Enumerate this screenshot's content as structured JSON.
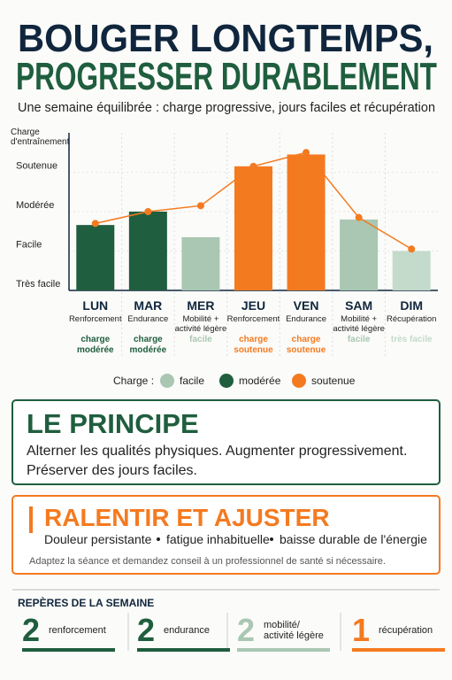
{
  "header": {
    "title_line1": "BOUGER LONGTEMPS,",
    "title_line2": "PROGRESSER DURABLEMENT",
    "subtitle": "Une semaine équilibrée : charge progressive, jours faciles et récupération"
  },
  "chart_data": {
    "type": "bar",
    "y_label": [
      "Charge",
      "d'entraînement"
    ],
    "categories": [
      "LUN",
      "MAR",
      "MER",
      "JEU",
      "VEN",
      "SAM",
      "DIM"
    ],
    "activities": [
      [
        "Renforcement"
      ],
      [
        "Endurance"
      ],
      [
        "Mobilité +",
        "activité légère"
      ],
      [
        "Renforcement"
      ],
      [
        "Endurance"
      ],
      [
        "Mobilité +",
        "activité légère"
      ],
      [
        "Récupération"
      ]
    ],
    "load_labels": [
      [
        "charge",
        "modérée"
      ],
      [
        "charge",
        "modérée"
      ],
      [
        "facile"
      ],
      [
        "charge",
        "soutenue"
      ],
      [
        "charge",
        "soutenue"
      ],
      [
        "facile"
      ],
      [
        "très facile"
      ]
    ],
    "values": [
      1.66,
      2.0,
      1.35,
      3.15,
      3.45,
      1.8,
      1.0
    ],
    "colors": [
      "#1f5e3e",
      "#1f5e3e",
      "#a9c7b2",
      "#f47a20",
      "#f47a20",
      "#a9c7b2",
      "#c4dacb"
    ],
    "line": {
      "color": "#f47a20",
      "values": [
        1.7,
        2.0,
        2.15,
        3.15,
        3.5,
        1.85,
        1.05
      ]
    },
    "ylim": [
      0,
      4
    ],
    "yticks": [
      {
        "value": 0,
        "label": "Très facile"
      },
      {
        "value": 1,
        "label": "Facile"
      },
      {
        "value": 2,
        "label": "Modérée"
      },
      {
        "value": 3,
        "label": "Soutenue"
      }
    ],
    "grid": true,
    "legend": {
      "title": "Charge :",
      "items": [
        {
          "name": "facile",
          "color": "#a9c7b2"
        },
        {
          "name": "modérée",
          "color": "#1f5e3e"
        },
        {
          "name": "soutenue",
          "color": "#f47a20"
        }
      ]
    }
  },
  "principle": {
    "title": "LE PRINCIPE",
    "lines": [
      "Alterner les qualités physiques. Augmenter progressivement.",
      "Préserver des jours faciles."
    ]
  },
  "slow_down": {
    "title": "RALENTIR ET AJUSTER",
    "signs": [
      "Douleur persistante",
      "fatigue inhabituelle",
      "baisse durable de l'énergie"
    ],
    "note": "Adaptez la séance et demandez conseil à un professionnel de santé si nécessaire."
  },
  "week_marks": {
    "title": "REPÈRES DE LA SEMAINE",
    "items": [
      {
        "count": 2,
        "label": [
          "renforcement"
        ],
        "color": "#1f5e3e"
      },
      {
        "count": 2,
        "label": [
          "endurance"
        ],
        "color": "#1f5e3e"
      },
      {
        "count": 2,
        "label": [
          "mobilité/",
          "activité légère"
        ],
        "color": "#a9c7b2"
      },
      {
        "count": 1,
        "label": [
          "récupération"
        ],
        "color": "#f47a20"
      }
    ]
  }
}
